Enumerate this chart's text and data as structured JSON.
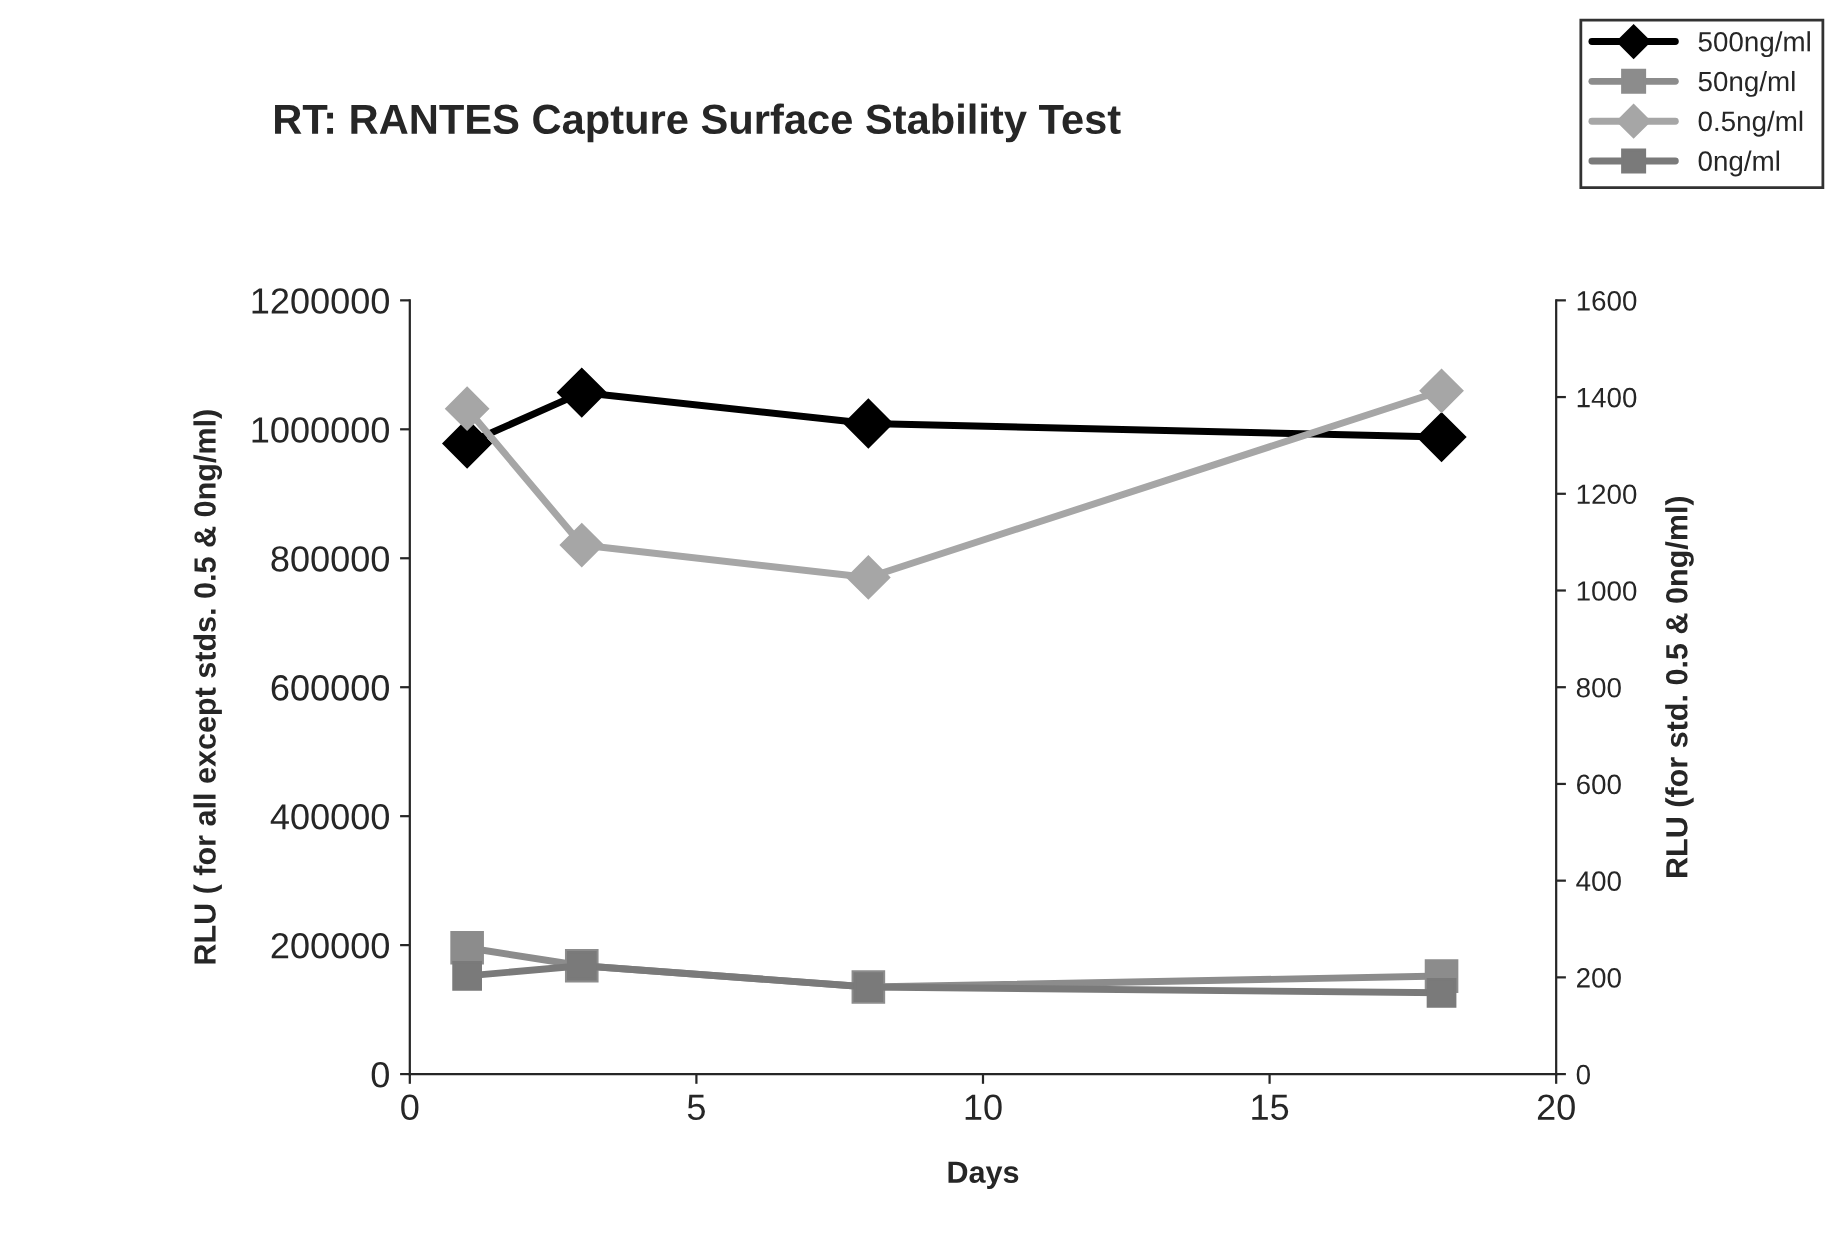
{
  "chart_data": {
    "type": "line",
    "title": "RT: RANTES Capture Surface Stability Test",
    "xlabel": "Days",
    "ylabel": "RLU ( for all except stds. 0.5 & 0ng/ml)",
    "y2label": "RLU (for std. 0.5 & 0ng/ml)",
    "x": [
      1,
      3,
      8,
      18
    ],
    "series": [
      {
        "name": "500ng/ml",
        "color": "#000000",
        "marker": "diamond",
        "values": [
          978000,
          1057000,
          1009000,
          988000
        ]
      },
      {
        "name": "50ng/ml",
        "color": "#8c8c8c",
        "marker": "square",
        "values": [
          196000,
          168000,
          135000,
          152000
        ]
      },
      {
        "name": "0.5ng/ml",
        "color": "#a6a6a6",
        "marker": "diamond",
        "axis": "y2",
        "values": [
          1376,
          1094,
          1027,
          1413
        ]
      },
      {
        "name": "0ng/ml",
        "color": "#7a7a7a",
        "marker": "square",
        "axis": "y2",
        "values": [
          203,
          224,
          180,
          168
        ]
      }
    ],
    "xlim": [
      0,
      20
    ],
    "xticks": [
      0,
      5,
      10,
      15,
      20
    ],
    "ylim": [
      0,
      1200000
    ],
    "yticks": [
      0,
      200000,
      400000,
      600000,
      800000,
      1000000,
      1200000
    ],
    "y2lim": [
      0,
      1600
    ],
    "y2ticks": [
      0,
      200,
      400,
      600,
      800,
      1000,
      1200,
      1400,
      1600
    ],
    "grid": false,
    "legend": "top right"
  }
}
